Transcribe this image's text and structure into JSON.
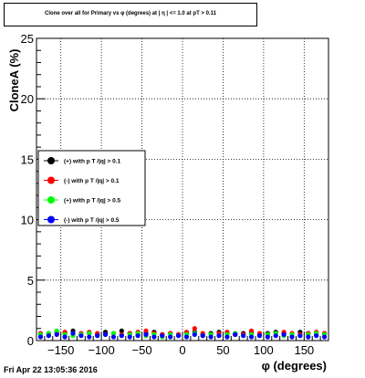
{
  "chart_data": {
    "type": "scatter",
    "title": "Clone  over all for Primary vs φ (degrees) at | η | <= 1.0 at pT > 0.11",
    "xlabel": "φ (degrees)",
    "ylabel": "CloneA (%)",
    "xlim": [
      -180,
      180
    ],
    "ylim": [
      0,
      25
    ],
    "xticks": [
      -150,
      -100,
      -50,
      0,
      50,
      100,
      150
    ],
    "xtick_labels": [
      "−150",
      "−100",
      "−50",
      "0",
      "50",
      "100",
      "150"
    ],
    "yticks": [
      0,
      5,
      10,
      15,
      20,
      25
    ],
    "ytick_labels": [
      "0",
      "5",
      "10",
      "15",
      "20",
      "25"
    ],
    "grid": true,
    "legend_position": "left-middle",
    "series": [
      {
        "name": "(+) with p T /|q| > 0.1",
        "color": "#000000",
        "x": [
          -175,
          -165,
          -155,
          -145,
          -135,
          -125,
          -115,
          -105,
          -95,
          -85,
          -75,
          -65,
          -55,
          -45,
          -35,
          -25,
          -15,
          -5,
          5,
          15,
          25,
          35,
          45,
          55,
          65,
          75,
          85,
          95,
          105,
          115,
          125,
          135,
          145,
          155,
          165,
          175
        ],
        "y": [
          0.5,
          0.6,
          0.7,
          0.6,
          0.8,
          0.5,
          0.6,
          0.5,
          0.7,
          0.6,
          0.8,
          0.6,
          0.5,
          0.6,
          0.7,
          0.5,
          0.6,
          0.5,
          0.6,
          0.7,
          0.5,
          0.6,
          0.7,
          0.6,
          0.5,
          0.6,
          0.7,
          0.5,
          0.6,
          0.7,
          0.6,
          0.5,
          0.7,
          0.6,
          0.5,
          0.6
        ]
      },
      {
        "name": "(-) with p T /|q| > 0.1",
        "color": "#ff0000",
        "x": [
          -175,
          -165,
          -155,
          -145,
          -135,
          -125,
          -115,
          -105,
          -95,
          -85,
          -75,
          -65,
          -55,
          -45,
          -35,
          -25,
          -15,
          -5,
          5,
          15,
          25,
          35,
          45,
          55,
          65,
          75,
          85,
          95,
          105,
          115,
          125,
          135,
          145,
          155,
          165,
          175
        ],
        "y": [
          0.6,
          0.5,
          0.6,
          0.7,
          0.5,
          0.6,
          0.7,
          0.6,
          0.5,
          0.6,
          0.5,
          0.6,
          0.7,
          0.8,
          0.6,
          0.5,
          0.6,
          0.5,
          0.7,
          1.0,
          0.6,
          0.5,
          0.6,
          0.7,
          0.6,
          0.5,
          0.8,
          0.6,
          0.5,
          0.6,
          0.7,
          0.6,
          0.5,
          0.6,
          0.7,
          0.6
        ]
      },
      {
        "name": "(+) with p T /|q| > 0.5",
        "color": "#00ff00",
        "x": [
          -175,
          -165,
          -155,
          -145,
          -135,
          -125,
          -115,
          -105,
          -95,
          -85,
          -75,
          -65,
          -55,
          -45,
          -35,
          -25,
          -15,
          -5,
          5,
          15,
          25,
          35,
          45,
          55,
          65,
          75,
          85,
          95,
          105,
          115,
          125,
          135,
          145,
          155,
          165,
          175
        ],
        "y": [
          0.5,
          0.6,
          0.8,
          0.5,
          0.4,
          0.5,
          0.6,
          0.4,
          0.5,
          0.6,
          0.4,
          0.5,
          0.6,
          0.4,
          0.5,
          0.3,
          0.5,
          0.4,
          0.5,
          0.6,
          0.4,
          0.5,
          0.4,
          0.5,
          0.6,
          0.4,
          0.5,
          0.4,
          0.5,
          0.6,
          0.4,
          0.5,
          0.4,
          0.5,
          0.6,
          0.5
        ]
      },
      {
        "name": "(-) with p T /|q| > 0.5",
        "color": "#0000ff",
        "x": [
          -175,
          -165,
          -155,
          -145,
          -135,
          -125,
          -115,
          -105,
          -95,
          -85,
          -75,
          -65,
          -55,
          -45,
          -35,
          -25,
          -15,
          -5,
          5,
          15,
          25,
          35,
          45,
          55,
          65,
          75,
          85,
          95,
          105,
          115,
          125,
          135,
          145,
          155,
          165,
          175
        ],
        "y": [
          0.3,
          0.4,
          0.5,
          0.3,
          0.6,
          0.4,
          0.3,
          0.4,
          0.5,
          0.3,
          0.4,
          0.3,
          0.4,
          0.5,
          0.3,
          0.4,
          0.3,
          0.4,
          0.3,
          0.5,
          0.4,
          0.3,
          0.4,
          0.3,
          0.5,
          0.4,
          0.3,
          0.4,
          0.3,
          0.4,
          0.5,
          0.3,
          0.4,
          0.3,
          0.4,
          0.3
        ]
      }
    ]
  },
  "footer": {
    "timestamp": "Fri Apr 22 13:05:36 2016"
  }
}
